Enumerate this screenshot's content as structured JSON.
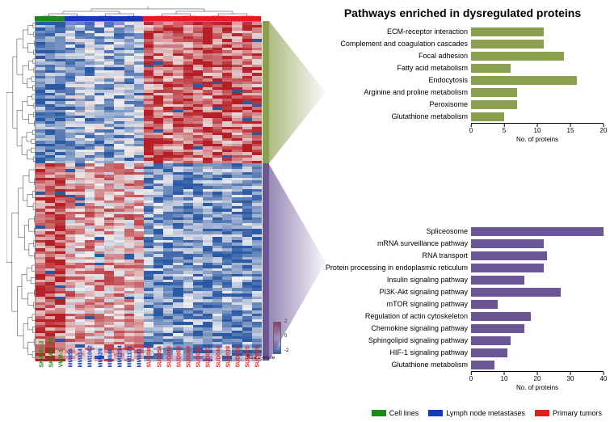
{
  "title": "Pathways enriched in dysregulated proteins",
  "heatmap": {
    "n_rows": 120,
    "n_cols": 23,
    "colorbar": {
      "title": "Raw Z-score",
      "min": -2,
      "max": 2,
      "ticks": [
        2,
        0,
        -2
      ],
      "colors": [
        "#2b5aa5",
        "#f0eeee",
        "#b61f26"
      ]
    },
    "col_groups": [
      {
        "n": 3,
        "color": "#1a8a1a"
      },
      {
        "n": 8,
        "color": "#1537c4"
      },
      {
        "n": 12,
        "color": "#e21d1d"
      }
    ],
    "row_groups": [
      {
        "frac": 0.42,
        "color": "#8ba04f"
      },
      {
        "frac": 0.58,
        "color": "#6b5695"
      }
    ],
    "samples": [
      {
        "label": "SK-MEL-2",
        "color": "#1a8a1a"
      },
      {
        "label": "SK-MEL-28",
        "color": "#1a8a1a"
      },
      {
        "label": "VMM-1",
        "color": "#1a8a1a"
      },
      {
        "label": "MM856",
        "color": "#1537c4"
      },
      {
        "label": "MM814",
        "color": "#1537c4"
      },
      {
        "label": "MM1062",
        "color": "#1537c4"
      },
      {
        "label": "MM829",
        "color": "#1537c4"
      },
      {
        "label": "MM846",
        "color": "#1537c4"
      },
      {
        "label": "MM1254",
        "color": "#1537c4"
      },
      {
        "label": "MM1171",
        "color": "#1537c4"
      },
      {
        "label": "MM841",
        "color": "#1537c4"
      },
      {
        "label": "SUD046",
        "color": "#e21d1d"
      },
      {
        "label": "SUD054",
        "color": "#e21d1d"
      },
      {
        "label": "SUD048",
        "color": "#e21d1d"
      },
      {
        "label": "SUD050",
        "color": "#e21d1d"
      },
      {
        "label": "SUD069",
        "color": "#e21d1d"
      },
      {
        "label": "SUD068",
        "color": "#e21d1d"
      },
      {
        "label": "SUD027",
        "color": "#e21d1d"
      },
      {
        "label": "SUD044",
        "color": "#e21d1d"
      },
      {
        "label": "SUD039",
        "color": "#e21d1d"
      },
      {
        "label": "SUD028",
        "color": "#e21d1d"
      },
      {
        "label": "SUD025",
        "color": "#e21d1d"
      },
      {
        "label": "SUD029",
        "color": "#e21d1d"
      }
    ]
  },
  "chart_top": {
    "color": "#8ba04f",
    "xlim": 20,
    "ticks": [
      0,
      5,
      10,
      15,
      20
    ],
    "xlabel": "No. of proteins",
    "bars": [
      {
        "label": "ECM-receptor interaction",
        "value": 11
      },
      {
        "label": "Complement and coagulation cascades",
        "value": 11
      },
      {
        "label": "Focal adhesion",
        "value": 14
      },
      {
        "label": "Fatty acid metabolism",
        "value": 6
      },
      {
        "label": "Endocytosis",
        "value": 16
      },
      {
        "label": "Arginine and proline metabolism",
        "value": 7
      },
      {
        "label": "Peroxisome",
        "value": 7
      },
      {
        "label": "Glutathione metabolism",
        "value": 5
      }
    ]
  },
  "chart_bottom": {
    "color": "#6b5695",
    "xlim": 40,
    "ticks": [
      0,
      10,
      20,
      30,
      40
    ],
    "xlabel": "No. of proteins",
    "bars": [
      {
        "label": "Spliceosome",
        "value": 40
      },
      {
        "label": "mRNA surveillance pathway",
        "value": 22
      },
      {
        "label": "RNA transport",
        "value": 23
      },
      {
        "label": "Protein processing in endoplasmic reticulum",
        "value": 22
      },
      {
        "label": "Insulin signaling pathway",
        "value": 16
      },
      {
        "label": "PI3K-Akt signaling pathway",
        "value": 27
      },
      {
        "label": "mTOR signaling pathway",
        "value": 8
      },
      {
        "label": "Regulation of actin cytoskeleton",
        "value": 18
      },
      {
        "label": "Chemokine signaling pathway",
        "value": 16
      },
      {
        "label": "Sphingolipid signaling pathway",
        "value": 12
      },
      {
        "label": "HIF-1 signaling pathway",
        "value": 11
      },
      {
        "label": "Glutathione metabolism",
        "value": 7
      }
    ]
  },
  "legend": [
    {
      "label": "Cell lines",
      "color": "#1a8a1a"
    },
    {
      "label": "Lymph node metastases",
      "color": "#1537c4"
    },
    {
      "label": "Primary tumors",
      "color": "#e21d1d"
    }
  ]
}
